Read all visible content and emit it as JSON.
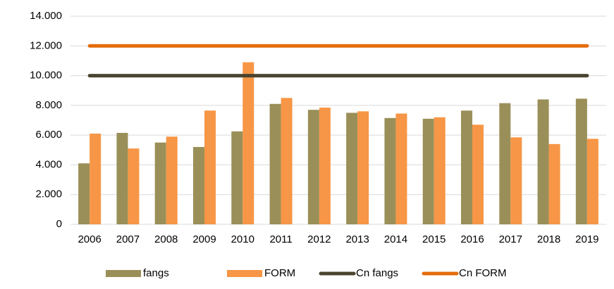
{
  "chart_data": {
    "type": "bar",
    "categories": [
      "2006",
      "2007",
      "2008",
      "2009",
      "2010",
      "2011",
      "2012",
      "2013",
      "2014",
      "2015",
      "2016",
      "2017",
      "2018",
      "2019"
    ],
    "series": [
      {
        "name": "fangs",
        "type": "bar",
        "color": "#9a8f58",
        "values": [
          4100,
          6150,
          5500,
          5200,
          6250,
          8100,
          7700,
          7500,
          7150,
          7100,
          7650,
          8150,
          8400,
          8450
        ]
      },
      {
        "name": "FORM",
        "type": "bar",
        "color": "#f79646",
        "values": [
          6100,
          5100,
          5900,
          7650,
          10900,
          8500,
          7850,
          7600,
          7450,
          7200,
          6700,
          5850,
          5400,
          5750
        ]
      },
      {
        "name": "Cn fangs",
        "type": "line",
        "color": "#4a4530",
        "values": [
          10000,
          10000,
          10000,
          10000,
          10000,
          10000,
          10000,
          10000,
          10000,
          10000,
          10000,
          10000,
          10000,
          10000
        ]
      },
      {
        "name": "Cn FORM",
        "type": "line",
        "color": "#e46c0a",
        "values": [
          12000,
          12000,
          12000,
          12000,
          12000,
          12000,
          12000,
          12000,
          12000,
          12000,
          12000,
          12000,
          12000,
          12000
        ]
      }
    ],
    "ylim": [
      0,
      14000
    ],
    "yticks": [
      0,
      {
        "value": 2000,
        "label": "2.000"
      },
      {
        "value": 4000,
        "label": "4.000"
      },
      {
        "value": 6000,
        "label": "6.000"
      },
      {
        "value": 8000,
        "label": "8.000"
      },
      {
        "value": 10000,
        "label": "10.000"
      },
      {
        "value": 12000,
        "label": "12.000"
      },
      {
        "value": 14000,
        "label": "14.000"
      }
    ],
    "grid": true,
    "legend": "bottom"
  }
}
